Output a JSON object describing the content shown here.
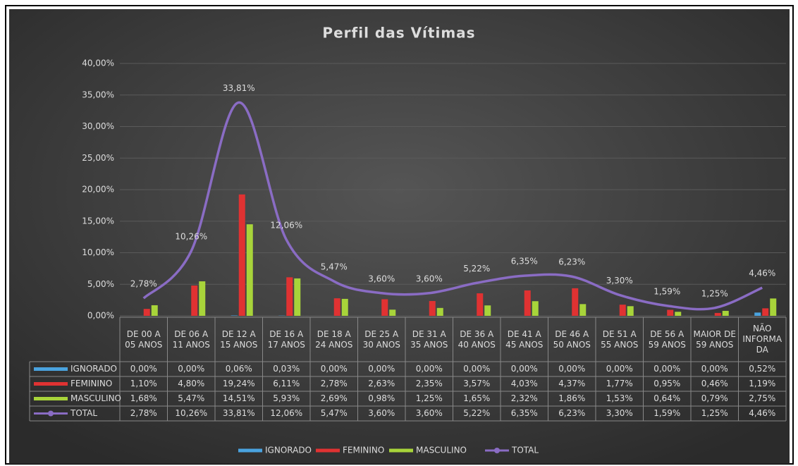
{
  "chart_data": {
    "type": "bar-line-table",
    "title": "Perfil das Vítimas",
    "categories": [
      "DE 00 A 05 ANOS",
      "DE 06 A 11 ANOS",
      "DE 12 A 15 ANOS",
      "DE 16 A 17 ANOS",
      "DE 18 A 24 ANOS",
      "DE 25 A 30 ANOS",
      "DE 31 A 35 ANOS",
      "DE 36 A 40 ANOS",
      "DE 41 A 45 ANOS",
      "DE 46 A 50 ANOS",
      "DE 51 A 55 ANOS",
      "DE 56 A 59 ANOS",
      "MAIOR DE 59 ANOS",
      "NÃO INFORMADA"
    ],
    "ylim": [
      0,
      40
    ],
    "yticks": [
      {
        "value": 0,
        "label": "0,00%"
      },
      {
        "value": 5,
        "label": "5,00%"
      },
      {
        "value": 10,
        "label": "10,00%"
      },
      {
        "value": 15,
        "label": "15,00%"
      },
      {
        "value": 20,
        "label": "20,00%"
      },
      {
        "value": 25,
        "label": "25,00%"
      },
      {
        "value": 30,
        "label": "30,00%"
      },
      {
        "value": 35,
        "label": "35,00%"
      },
      {
        "value": 40,
        "label": "40,00%"
      }
    ],
    "grid": true,
    "series": [
      {
        "name": "IGNORADO",
        "type": "bar",
        "color": "#4aa3df",
        "values": [
          0,
          0,
          0.06,
          0.03,
          0,
          0,
          0,
          0,
          0,
          0,
          0,
          0,
          0,
          0.52
        ],
        "value_labels": [
          "0,00%",
          "0,00%",
          "0,06%",
          "0,03%",
          "0,00%",
          "0,00%",
          "0,00%",
          "0,00%",
          "0,00%",
          "0,00%",
          "0,00%",
          "0,00%",
          "0,00%",
          "0,52%"
        ]
      },
      {
        "name": "FEMININO",
        "type": "bar",
        "color": "#e03232",
        "values": [
          1.1,
          4.8,
          19.24,
          6.11,
          2.78,
          2.63,
          2.35,
          3.57,
          4.03,
          4.37,
          1.77,
          0.95,
          0.46,
          1.19
        ],
        "value_labels": [
          "1,10%",
          "4,80%",
          "19,24%",
          "6,11%",
          "2,78%",
          "2,63%",
          "2,35%",
          "3,57%",
          "4,03%",
          "4,37%",
          "1,77%",
          "0,95%",
          "0,46%",
          "1,19%"
        ]
      },
      {
        "name": "MASCULINO",
        "type": "bar",
        "color": "#a8d43a",
        "values": [
          1.68,
          5.47,
          14.51,
          5.93,
          2.69,
          0.98,
          1.25,
          1.65,
          2.32,
          1.86,
          1.53,
          0.64,
          0.79,
          2.75
        ],
        "value_labels": [
          "1,68%",
          "5,47%",
          "14,51%",
          "5,93%",
          "2,69%",
          "0,98%",
          "1,25%",
          "1,65%",
          "2,32%",
          "1,86%",
          "1,53%",
          "0,64%",
          "0,79%",
          "2,75%"
        ]
      },
      {
        "name": "TOTAL",
        "type": "line",
        "color": "#8a6cc4",
        "values": [
          2.78,
          10.26,
          33.81,
          12.06,
          5.47,
          3.6,
          3.6,
          5.22,
          6.35,
          6.23,
          3.3,
          1.59,
          1.25,
          4.46
        ],
        "value_labels": [
          "2,78%",
          "10,26%",
          "33,81%",
          "12,06%",
          "5,47%",
          "3,60%",
          "3,60%",
          "5,22%",
          "6,35%",
          "6,23%",
          "3,30%",
          "1,59%",
          "1,25%",
          "4,46%"
        ]
      }
    ]
  }
}
